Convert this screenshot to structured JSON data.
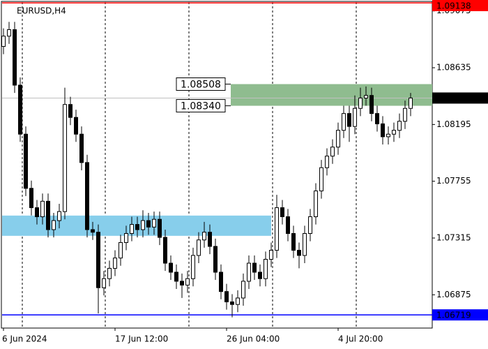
{
  "chart_data": {
    "type": "candlestick",
    "title": "EURUSD,H4",
    "categories": [
      "6 Jun 2024",
      null,
      null,
      null,
      null,
      null,
      null,
      null,
      null,
      null,
      null,
      null,
      null,
      null,
      null,
      null,
      null,
      null,
      null,
      null,
      "17 Jun 12:00",
      null,
      null,
      null,
      null,
      null,
      null,
      null,
      null,
      null,
      null,
      null,
      null,
      null,
      null,
      null,
      null,
      null,
      null,
      null,
      "26 Jun 04:00",
      null,
      null,
      null,
      null,
      null,
      null,
      null,
      null,
      null,
      null,
      null,
      null,
      null,
      null,
      null,
      null,
      null,
      null,
      null,
      "4 Jul 20:00",
      null,
      null,
      null,
      null,
      null,
      null,
      null,
      null,
      null,
      null,
      null,
      null,
      null
    ],
    "open": [
      1.088,
      1.0888,
      1.0893,
      1.085,
      1.0812,
      1.077,
      1.0755,
      1.0748,
      1.076,
      1.0738,
      1.0745,
      1.0752,
      1.0835,
      1.0825,
      1.0812,
      1.079,
      1.0738,
      1.0736,
      1.0693,
      1.07,
      1.0708,
      1.0716,
      1.0728,
      1.0735,
      1.0742,
      1.0738,
      1.0745,
      1.074,
      1.0746,
      1.0732,
      1.0712,
      1.0705,
      1.0698,
      1.0695,
      1.07,
      1.0718,
      1.073,
      1.0736,
      1.0725,
      1.0705,
      1.069,
      1.0682,
      1.068,
      1.0685,
      1.0698,
      1.0712,
      1.0705,
      1.07,
      1.0715,
      1.0722,
      1.0755,
      1.0748,
      1.0735,
      1.0722,
      1.0718,
      1.0735,
      1.0748,
      1.0768,
      1.0786,
      1.0795,
      1.0802,
      1.0815,
      1.0828,
      1.0818,
      1.0832,
      1.084,
      1.0842,
      1.0828,
      1.082,
      1.081,
      1.0812,
      1.0815,
      1.0822,
      1.0832
    ],
    "high": [
      1.0894,
      1.0899,
      1.0899,
      1.0856,
      1.0818,
      1.0776,
      1.0761,
      1.0766,
      1.0766,
      1.0751,
      1.0758,
      1.0848,
      1.0841,
      1.0831,
      1.0818,
      1.0796,
      1.0744,
      1.0742,
      1.0706,
      1.0714,
      1.0722,
      1.0734,
      1.0741,
      1.0748,
      1.0748,
      1.0753,
      1.0751,
      1.0752,
      1.0752,
      1.0738,
      1.0718,
      1.0711,
      1.0704,
      1.0706,
      1.0724,
      1.0736,
      1.0744,
      1.0742,
      1.0731,
      1.0711,
      1.0696,
      1.0688,
      1.0691,
      1.0704,
      1.0718,
      1.0718,
      1.0711,
      1.0721,
      1.0728,
      1.0765,
      1.0761,
      1.0754,
      1.0741,
      1.0728,
      1.0741,
      1.0754,
      1.0774,
      1.0792,
      1.0801,
      1.0808,
      1.0821,
      1.0834,
      1.0834,
      1.0842,
      1.0848,
      1.0849,
      1.0848,
      1.0834,
      1.0826,
      1.0818,
      1.0821,
      1.0828,
      1.0838,
      1.0844
    ],
    "low": [
      1.0874,
      1.0882,
      1.0844,
      1.0806,
      1.0764,
      1.0749,
      1.0742,
      1.0742,
      1.0732,
      1.0732,
      1.0739,
      1.0746,
      1.0819,
      1.0806,
      1.0784,
      1.0732,
      1.073,
      1.0673,
      1.0687,
      1.0694,
      1.0702,
      1.071,
      1.0722,
      1.0729,
      1.0732,
      1.0732,
      1.0734,
      1.0734,
      1.0726,
      1.0706,
      1.0699,
      1.0692,
      1.0685,
      1.0689,
      1.0694,
      1.0712,
      1.0724,
      1.0719,
      1.0699,
      1.0684,
      1.0676,
      1.067,
      1.0674,
      1.0679,
      1.0692,
      1.0699,
      1.0694,
      1.0694,
      1.0709,
      1.0716,
      1.0742,
      1.0729,
      1.0716,
      1.0708,
      1.0712,
      1.0729,
      1.0742,
      1.0762,
      1.078,
      1.0789,
      1.0796,
      1.0809,
      1.0806,
      1.0812,
      1.0826,
      1.0834,
      1.0822,
      1.0814,
      1.0804,
      1.0804,
      1.0806,
      1.0809,
      1.0816,
      1.0826
    ],
    "close": [
      1.0888,
      1.0893,
      1.085,
      1.0812,
      1.077,
      1.0755,
      1.0748,
      1.076,
      1.0738,
      1.0745,
      1.0752,
      1.0835,
      1.0825,
      1.0812,
      1.079,
      1.0738,
      1.0736,
      1.0693,
      1.07,
      1.0708,
      1.0716,
      1.0728,
      1.0735,
      1.0742,
      1.0738,
      1.0745,
      1.074,
      1.0746,
      1.0732,
      1.0712,
      1.0705,
      1.0698,
      1.0695,
      1.07,
      1.0718,
      1.073,
      1.0736,
      1.0725,
      1.0705,
      1.069,
      1.0682,
      1.068,
      1.0685,
      1.0698,
      1.0712,
      1.0705,
      1.07,
      1.0715,
      1.0722,
      1.0755,
      1.0748,
      1.0735,
      1.0722,
      1.0718,
      1.0735,
      1.0748,
      1.0768,
      1.0786,
      1.0795,
      1.0802,
      1.0815,
      1.0828,
      1.0818,
      1.0832,
      1.084,
      1.0842,
      1.0828,
      1.082,
      1.081,
      1.0812,
      1.0815,
      1.0822,
      1.0832,
      1.084
    ],
    "ylim": [
      1.06617,
      1.0916
    ],
    "yticks": [
      1.09075,
      1.08635,
      1.08195,
      1.07755,
      1.07315,
      1.06875
    ],
    "zones": [
      {
        "high": 1.08508,
        "low": {
          "value": 1.0834,
          "label": "1.08340"
        },
        "x": [
          41,
          77
        ],
        "color": "#8fbc8f",
        "labeled": true
      },
      {
        "high": 1.07489,
        "low": 1.07332,
        "x": [
          0,
          48
        ],
        "color": "#87ceeb",
        "labeled": false
      }
    ],
    "levels": [
      {
        "price": 1.09138,
        "color": "#ff0000",
        "line_color": "#ff0000"
      },
      {
        "price": {
          "value": 1.084,
          "label": "1.08400"
        },
        "color": "#000000",
        "line_color": "#c0c0c0"
      },
      {
        "price": 1.06719,
        "color": "#0000ff",
        "line_color": "#0000ff"
      }
    ]
  }
}
